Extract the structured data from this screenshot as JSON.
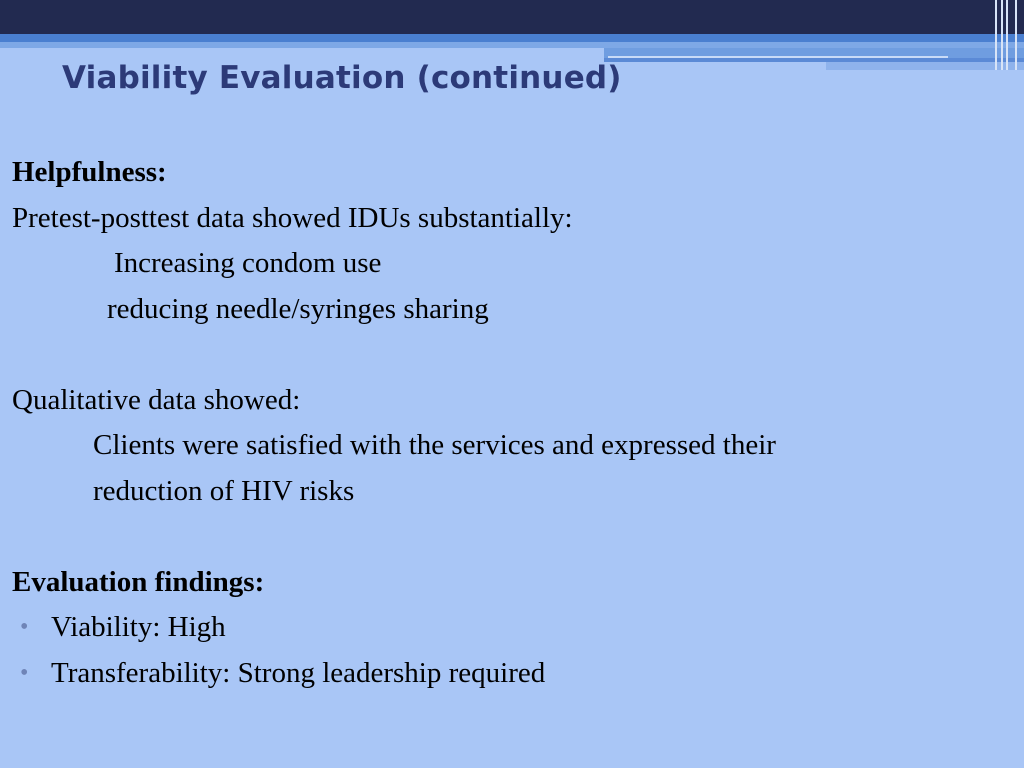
{
  "slide": {
    "title": "Viability Evaluation (continued)"
  },
  "body": {
    "helpfulness_heading": "Helpfulness:",
    "pretest_line": "Pretest-posttest data showed IDUs substantially:",
    "sub_item_1": "Increasing condom use",
    "sub_item_2": "reducing needle/syringes sharing",
    "qualitative_line": "Qualitative data showed:",
    "qualitative_detail_1": "Clients were satisfied with the services and expressed their",
    "qualitative_detail_2": "reduction of HIV risks",
    "findings_heading": "Evaluation findings:",
    "bullet_symbol": "•",
    "findings": [
      "Viability: High",
      "Transferability: Strong leadership required"
    ]
  },
  "colors": {
    "background": "#a9c6f6",
    "title": "#2c3a78",
    "top_bar": "#222a50",
    "bullet": "#6f84b7"
  }
}
